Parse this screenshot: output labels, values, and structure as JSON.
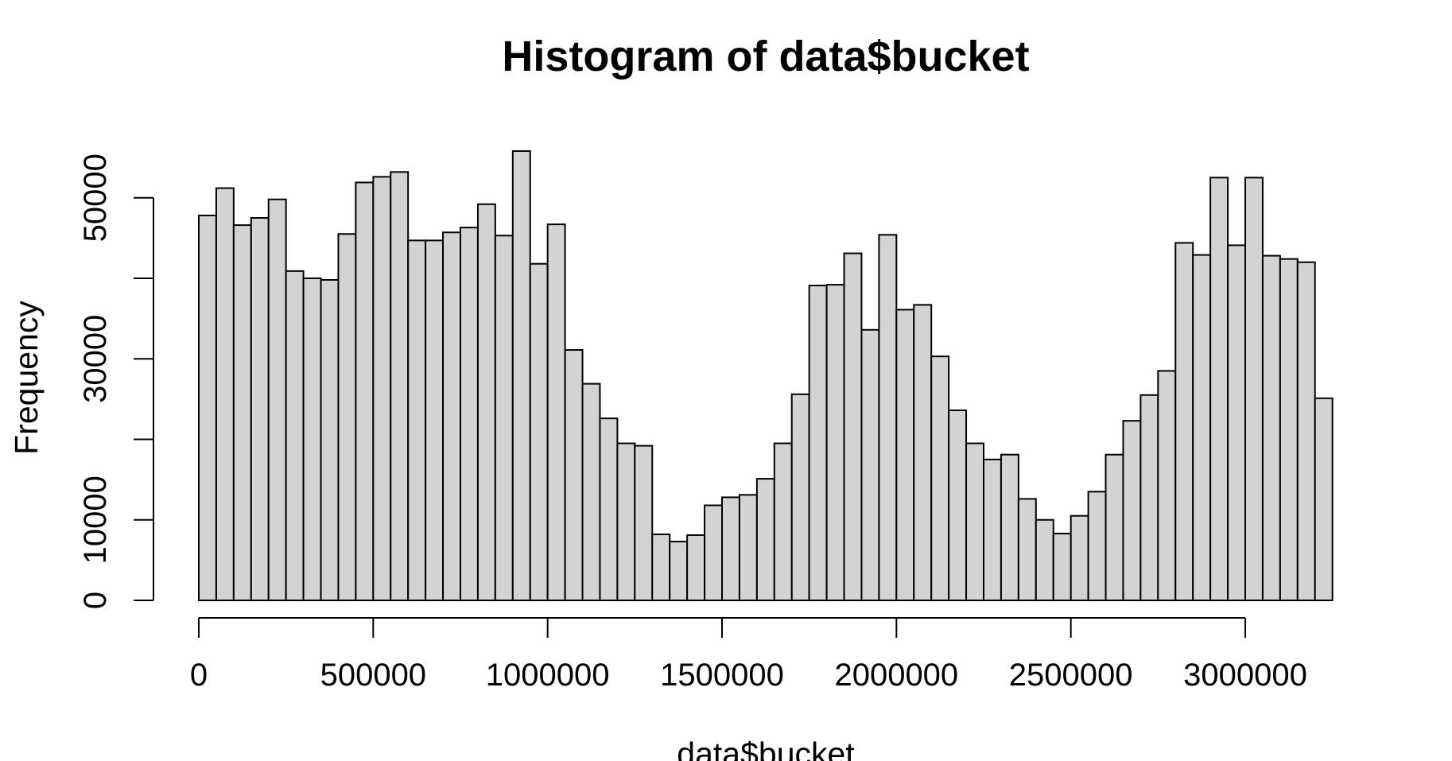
{
  "title": "Histogram of data$bucket",
  "x_axis": {
    "label": "data$bucket",
    "ticks": [
      {
        "v": 0,
        "label": "0"
      },
      {
        "v": 500000,
        "label": "500000"
      },
      {
        "v": 1000000,
        "label": "1000000"
      },
      {
        "v": 1500000,
        "label": "1500000"
      },
      {
        "v": 2000000,
        "label": "2000000"
      },
      {
        "v": 2500000,
        "label": "2500000"
      },
      {
        "v": 3000000,
        "label": "3000000"
      }
    ]
  },
  "y_axis": {
    "label": "Frequency",
    "ticks": [
      {
        "v": 0,
        "label": "0"
      },
      {
        "v": 10000,
        "label": "10000"
      },
      {
        "v": 20000,
        "label": ""
      },
      {
        "v": 30000,
        "label": "30000"
      },
      {
        "v": 40000,
        "label": ""
      },
      {
        "v": 50000,
        "label": "50000"
      }
    ]
  },
  "colors": {
    "bar_fill": "#d3d3d3",
    "bar_border": "#000000",
    "axis": "#000000",
    "background": "#ffffff"
  },
  "chart_data": {
    "type": "bar",
    "subtype": "histogram",
    "title": "Histogram of data$bucket",
    "xlabel": "data$bucket",
    "ylabel": "Frequency",
    "bin_width": 50000,
    "x_min": 0,
    "x_max": 3250000,
    "ylim": [
      0,
      56000
    ],
    "y_tick_step": 10000,
    "grid": "off",
    "legend": "none",
    "bin_starts": [
      0,
      50000,
      100000,
      150000,
      200000,
      250000,
      300000,
      350000,
      400000,
      450000,
      500000,
      550000,
      600000,
      650000,
      700000,
      750000,
      800000,
      850000,
      900000,
      950000,
      1000000,
      1050000,
      1100000,
      1150000,
      1200000,
      1250000,
      1300000,
      1350000,
      1400000,
      1450000,
      1500000,
      1550000,
      1600000,
      1650000,
      1700000,
      1750000,
      1800000,
      1850000,
      1900000,
      1950000,
      2000000,
      2050000,
      2100000,
      2150000,
      2200000,
      2250000,
      2300000,
      2350000,
      2400000,
      2450000,
      2500000,
      2550000,
      2600000,
      2650000,
      2700000,
      2750000,
      2800000,
      2850000,
      2900000,
      2950000,
      3000000,
      3050000,
      3100000,
      3150000,
      3200000
    ],
    "values": [
      47800,
      51200,
      46600,
      47500,
      49800,
      40900,
      40000,
      39800,
      45500,
      51900,
      52600,
      53200,
      44700,
      44700,
      45700,
      46300,
      49200,
      45300,
      55800,
      41800,
      46700,
      31100,
      26900,
      22600,
      19500,
      19200,
      8200,
      7300,
      8100,
      11800,
      12800,
      13100,
      15100,
      19500,
      25600,
      39100,
      39200,
      43100,
      33600,
      45400,
      36100,
      36700,
      30300,
      23600,
      19500,
      17500,
      18100,
      12600,
      10000,
      8300,
      10500,
      13500,
      18100,
      22300,
      25500,
      28500,
      44400,
      42900,
      52500,
      44100,
      52500,
      42800,
      42400,
      42000,
      25100
    ]
  }
}
